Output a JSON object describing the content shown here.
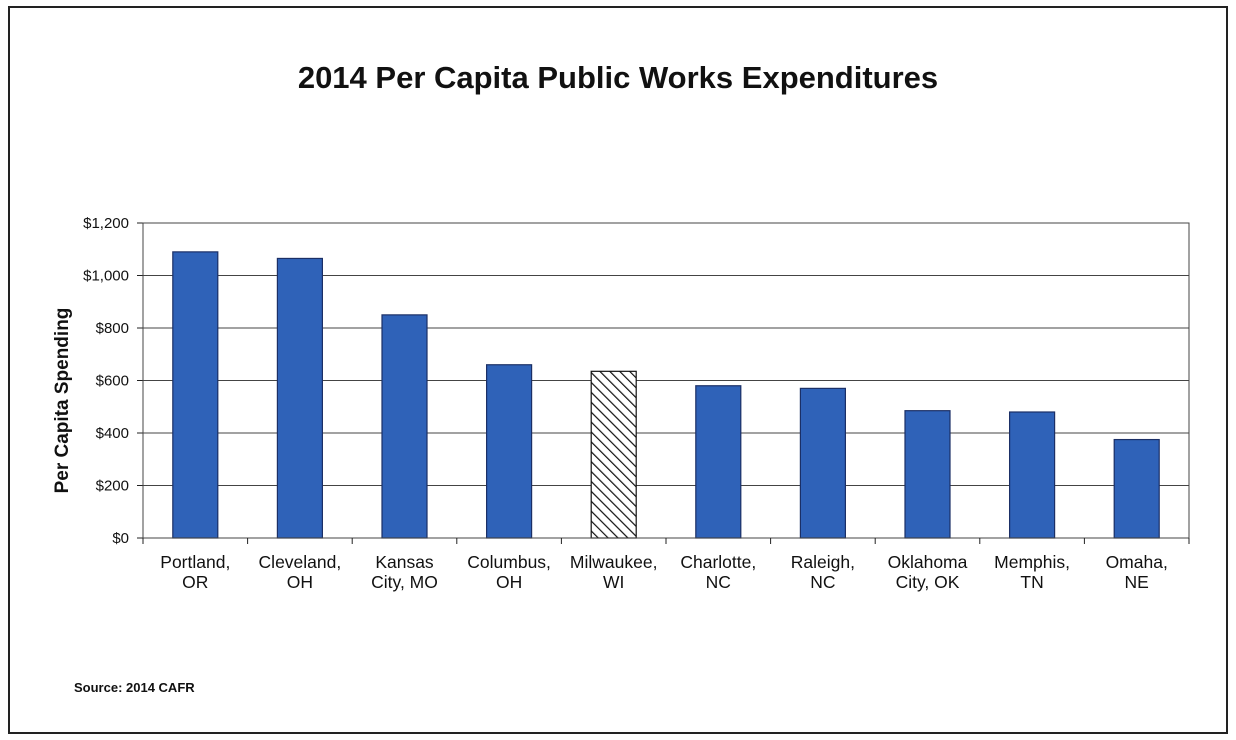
{
  "title": "2014 Per Capita Public Works Expenditures",
  "source": "Source:  2014 CAFR",
  "colors": {
    "bar": "#2f62b8",
    "bar_edge": "#1b2f66",
    "highlight_hatch": "#111111",
    "grid": "#444444"
  },
  "chart_data": {
    "type": "bar",
    "title": "2014 Per Capita Public Works Expenditures",
    "xlabel": "",
    "ylabel": "Per Capita Spending",
    "ylim": [
      0,
      1200
    ],
    "yticks": [
      0,
      200,
      400,
      600,
      800,
      1000,
      1200
    ],
    "ytick_labels": [
      "$0",
      "$200",
      "$400",
      "$600",
      "$800",
      "$1,000",
      "$1,200"
    ],
    "grid": true,
    "categories": [
      [
        "Portland,",
        "OR"
      ],
      [
        "Cleveland,",
        "OH"
      ],
      [
        "Kansas",
        "City, MO"
      ],
      [
        "Columbus,",
        "OH"
      ],
      [
        "Milwaukee,",
        "WI"
      ],
      [
        "Charlotte,",
        "NC"
      ],
      [
        "Raleigh,",
        "NC"
      ],
      [
        "Oklahoma",
        "City, OK"
      ],
      [
        "Memphis,",
        "TN"
      ],
      [
        "Omaha,",
        "NE"
      ]
    ],
    "values": [
      1090,
      1065,
      850,
      660,
      635,
      580,
      570,
      485,
      480,
      375
    ],
    "highlight": "Milwaukee, WI"
  }
}
